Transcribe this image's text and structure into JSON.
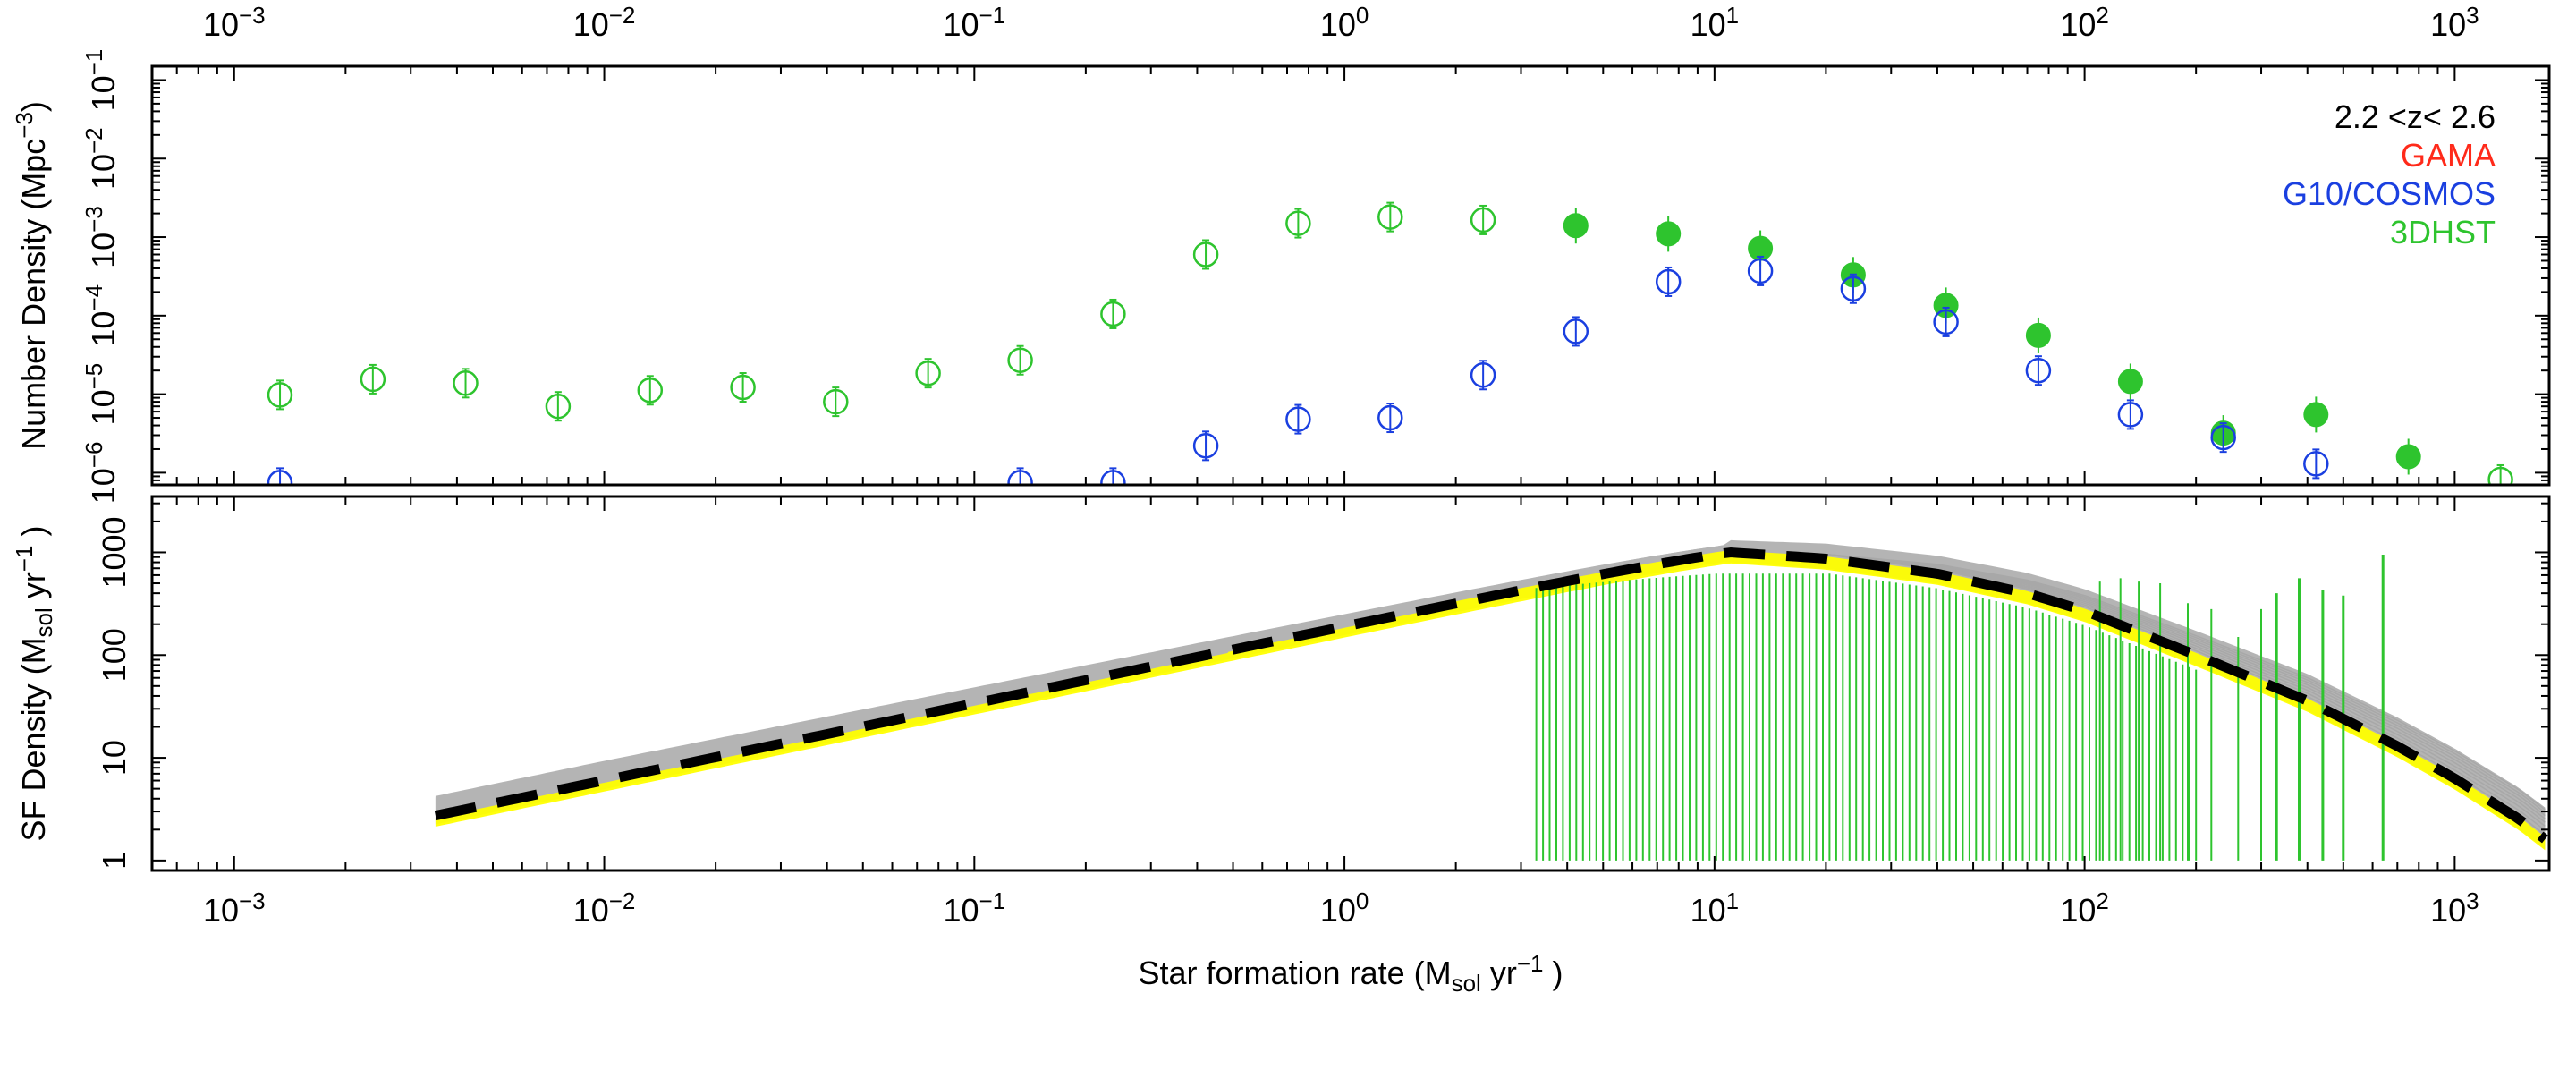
{
  "chart_data": [
    {
      "type": "scatter",
      "panel": "top",
      "ylabel": "Number Density (Mpc",
      "ylabel_sup": "−3",
      "ylabel_end": ")",
      "x_scale": "log",
      "y_scale": "log",
      "xlim": [
        0.0006,
        1800
      ],
      "ylim": [
        7e-07,
        0.15
      ],
      "annotation": "2.2 <z< 2.6",
      "legend_placement": "top-right",
      "legend": [
        {
          "label": "GAMA",
          "color": "#ff2a1a"
        },
        {
          "label": "G10/COSMOS",
          "color": "#1a3fe0"
        },
        {
          "label": "3DHST",
          "color": "#2ec42e"
        }
      ],
      "x_top_ticks": [
        {
          "base": "10",
          "exp": "−3",
          "value": 0.001
        },
        {
          "base": "10",
          "exp": "−2",
          "value": 0.01
        },
        {
          "base": "10",
          "exp": "−1",
          "value": 0.1
        },
        {
          "base": "10",
          "exp": "0",
          "value": 1
        },
        {
          "base": "10",
          "exp": "1",
          "value": 10
        },
        {
          "base": "10",
          "exp": "2",
          "value": 100
        },
        {
          "base": "10",
          "exp": "3",
          "value": 1000
        }
      ],
      "y_ticks": [
        {
          "base": "10",
          "exp": "−6",
          "value": 1e-06
        },
        {
          "base": "10",
          "exp": "−5",
          "value": 1e-05
        },
        {
          "base": "10",
          "exp": "−4",
          "value": 0.0001
        },
        {
          "base": "10",
          "exp": "−3",
          "value": 0.001
        },
        {
          "base": "10",
          "exp": "−2",
          "value": 0.01
        },
        {
          "base": "10",
          "exp": "−1",
          "value": 0.1
        }
      ],
      "series": [
        {
          "name": "3DHST",
          "color": "#2ec42e",
          "marker": "open-circle",
          "points": [
            {
              "x": 0.00133,
              "y": 9.8e-06
            },
            {
              "x": 0.00237,
              "y": 1.55e-05
            },
            {
              "x": 0.00422,
              "y": 1.38e-05
            },
            {
              "x": 0.0075,
              "y": 7e-06
            },
            {
              "x": 0.0133,
              "y": 1.12e-05
            },
            {
              "x": 0.0237,
              "y": 1.22e-05
            },
            {
              "x": 0.0422,
              "y": 8e-06
            },
            {
              "x": 0.075,
              "y": 1.85e-05
            },
            {
              "x": 0.133,
              "y": 2.7e-05
            },
            {
              "x": 0.237,
              "y": 0.000105
            },
            {
              "x": 0.422,
              "y": 0.0006
            },
            {
              "x": 0.75,
              "y": 0.0015
            },
            {
              "x": 1.33,
              "y": 0.0018
            },
            {
              "x": 2.37,
              "y": 0.00165
            },
            {
              "x": 1330,
              "y": 8.2e-07
            }
          ]
        },
        {
          "name": "3DHST",
          "color": "#2ec42e",
          "marker": "filled-circle",
          "points": [
            {
              "x": 4.22,
              "y": 0.0014
            },
            {
              "x": 7.5,
              "y": 0.0011
            },
            {
              "x": 13.3,
              "y": 0.00072
            },
            {
              "x": 23.7,
              "y": 0.00033
            },
            {
              "x": 42.2,
              "y": 0.000135
            },
            {
              "x": 75,
              "y": 5.6e-05
            },
            {
              "x": 133,
              "y": 1.45e-05
            },
            {
              "x": 237,
              "y": 3.2e-06
            },
            {
              "x": 422,
              "y": 5.5e-06
            },
            {
              "x": 750,
              "y": 1.6e-06
            }
          ]
        },
        {
          "name": "G10/COSMOS",
          "color": "#1a3fe0",
          "marker": "open-circle",
          "points": [
            {
              "x": 0.00133,
              "y": 7.5e-07
            },
            {
              "x": 0.133,
              "y": 7.5e-07
            },
            {
              "x": 0.237,
              "y": 7.5e-07
            },
            {
              "x": 0.422,
              "y": 2.2e-06
            },
            {
              "x": 0.75,
              "y": 4.8e-06
            },
            {
              "x": 1.33,
              "y": 5e-06
            },
            {
              "x": 2.37,
              "y": 1.75e-05
            },
            {
              "x": 4.22,
              "y": 6.3e-05
            },
            {
              "x": 7.5,
              "y": 0.00027
            },
            {
              "x": 13.3,
              "y": 0.00037
            },
            {
              "x": 23.7,
              "y": 0.00022
            },
            {
              "x": 42.2,
              "y": 8.3e-05
            },
            {
              "x": 75,
              "y": 2e-05
            },
            {
              "x": 133,
              "y": 5.5e-06
            },
            {
              "x": 237,
              "y": 2.8e-06
            },
            {
              "x": 422,
              "y": 1.3e-06
            }
          ]
        }
      ]
    },
    {
      "type": "line",
      "panel": "bottom",
      "xlabel": "Star formation rate (M",
      "xlabel_sub": "sol",
      "xlabel_end": " yr",
      "xlabel_sup": "−1",
      "xlabel_close": " )",
      "ylabel": "SF Density (M",
      "ylabel_sub": "sol",
      "ylabel_mid": " yr",
      "ylabel_sup": "−1",
      "ylabel_end": " )",
      "x_scale": "log",
      "y_scale": "log",
      "xlim": [
        0.0006,
        1800
      ],
      "ylim": [
        0.8,
        3500
      ],
      "x_ticks": [
        {
          "base": "10",
          "exp": "−3",
          "value": 0.001
        },
        {
          "base": "10",
          "exp": "−2",
          "value": 0.01
        },
        {
          "base": "10",
          "exp": "−1",
          "value": 0.1
        },
        {
          "base": "10",
          "exp": "0",
          "value": 1
        },
        {
          "base": "10",
          "exp": "1",
          "value": 10
        },
        {
          "base": "10",
          "exp": "2",
          "value": 100
        },
        {
          "base": "10",
          "exp": "3",
          "value": 1000
        }
      ],
      "y_ticks": [
        {
          "label": "1",
          "value": 1
        },
        {
          "label": "10",
          "value": 10
        },
        {
          "label": "100",
          "value": 100
        },
        {
          "label": "1000",
          "value": 1000
        }
      ],
      "fit_curve": {
        "color": "#000000",
        "style": "dashed",
        "peak_x": 11,
        "peak_y": 1000,
        "low_slope": 0.75,
        "high_x": [
          11,
          20,
          40,
          70,
          100,
          200,
          400,
          700,
          1000,
          1500,
          1800
        ],
        "high_y": [
          1000,
          870,
          620,
          400,
          270,
          100,
          36,
          13,
          6.3,
          2.5,
          1.5
        ]
      },
      "bands": [
        {
          "name": "gray-realizations",
          "color": "#b4b4b4"
        },
        {
          "name": "yellow-realizations",
          "color": "#ffff00"
        }
      ],
      "bars": {
        "color": "#2ec42e",
        "x_start": 3.3,
        "x_end": 640,
        "count": 100,
        "bottom": 1,
        "rise_start_y": 450,
        "plateau_y": 620,
        "long_bars": [
          {
            "x": 330,
            "y": 400
          },
          {
            "x": 380,
            "y": 560
          },
          {
            "x": 440,
            "y": 430
          },
          {
            "x": 500,
            "y": 380
          },
          {
            "x": 640,
            "y": 950
          }
        ]
      }
    }
  ]
}
